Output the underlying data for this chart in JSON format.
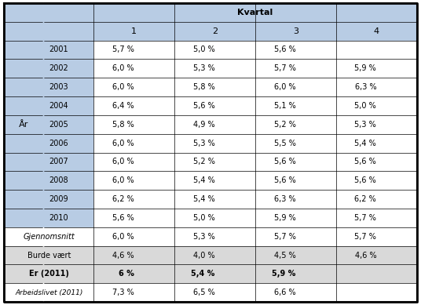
{
  "header_kvartal": "Kvartal",
  "col_headers": [
    "1",
    "2",
    "3",
    "4"
  ],
  "row_label_top": "År",
  "years": [
    "2001",
    "2002",
    "2003",
    "2004",
    "2005",
    "2006",
    "2007",
    "2008",
    "2009",
    "2010"
  ],
  "year_data": [
    [
      "5,7 %",
      "5,0 %",
      "5,6 %",
      ""
    ],
    [
      "6,0 %",
      "5,3 %",
      "5,7 %",
      "5,9 %"
    ],
    [
      "6,0 %",
      "5,8 %",
      "6,0 %",
      "6,3 %"
    ],
    [
      "6,4 %",
      "5,6 %",
      "5,1 %",
      "5,0 %"
    ],
    [
      "5,8 %",
      "4,9 %",
      "5,2 %",
      "5,3 %"
    ],
    [
      "6,0 %",
      "5,3 %",
      "5,5 %",
      "5,4 %"
    ],
    [
      "6,0 %",
      "5,2 %",
      "5,6 %",
      "5,6 %"
    ],
    [
      "6,0 %",
      "5,4 %",
      "5,6 %",
      "5,6 %"
    ],
    [
      "6,2 %",
      "5,4 %",
      "6,3 %",
      "6,2 %"
    ],
    [
      "5,6 %",
      "5,0 %",
      "5,9 %",
      "5,7 %"
    ]
  ],
  "gjennomsnitt_label": "Gjennomsnitt",
  "gjennomsnitt_data": [
    "6,0 %",
    "5,3 %",
    "5,7 %",
    "5,7 %"
  ],
  "burde_label": "Burde vært",
  "burde_data": [
    "4,6 %",
    "4,0 %",
    "4,5 %",
    "4,6 %"
  ],
  "er_label": "Er (2011)",
  "er_data": [
    "6 %",
    "5,4 %",
    "5,9 %",
    ""
  ],
  "arbeidslivet_label": "Arbeidslivet (2011)",
  "arbeidslivet_data": [
    "7,3 %",
    "6,5 %",
    "6,6 %",
    ""
  ],
  "color_header": "#b8cce4",
  "color_year_label_bg": "#b8cce4",
  "color_gjennomsnitt_bg": "#ffffff",
  "color_burde_bg": "#d9d9d9",
  "color_er_bg": "#d9d9d9",
  "color_arbeidslivet_bg": "#ffffff",
  "color_data_bg": "#ffffff",
  "color_border": "#000000",
  "figsize": [
    5.36,
    3.89
  ],
  "dpi": 100
}
